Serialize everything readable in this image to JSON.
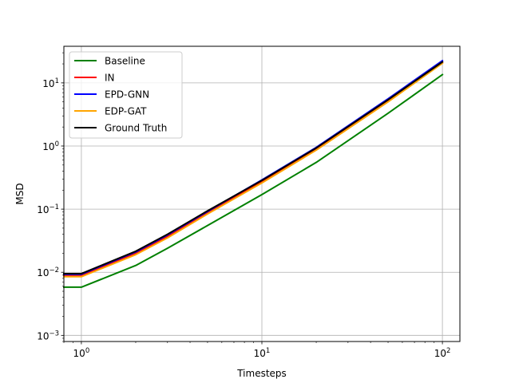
{
  "chart_data": {
    "type": "line",
    "title": "",
    "xlabel": "Timesteps",
    "ylabel": "MSD",
    "xscale": "log",
    "yscale": "log",
    "xlim": [
      0.8,
      125
    ],
    "ylim": [
      0.0008,
      38
    ],
    "grid": true,
    "legend_position": "upper-left",
    "x_ticks": [
      {
        "value": 1,
        "base": "10",
        "exp": "0"
      },
      {
        "value": 10,
        "base": "10",
        "exp": "1"
      },
      {
        "value": 100,
        "base": "10",
        "exp": "2"
      }
    ],
    "y_ticks": [
      {
        "value": 0.001,
        "base": "10",
        "exp": "−3"
      },
      {
        "value": 0.01,
        "base": "10",
        "exp": "−2"
      },
      {
        "value": 0.1,
        "base": "10",
        "exp": "−1"
      },
      {
        "value": 1,
        "base": "10",
        "exp": "0"
      },
      {
        "value": 10,
        "base": "10",
        "exp": "1"
      }
    ],
    "series": [
      {
        "name": "Baseline",
        "color": "#008000",
        "x": [
          0.8,
          1,
          2,
          3,
          5,
          10,
          20,
          50,
          100
        ],
        "y": [
          0.0058,
          0.0058,
          0.0128,
          0.024,
          0.055,
          0.17,
          0.55,
          3.3,
          13.5
        ]
      },
      {
        "name": "IN",
        "color": "#ff0000",
        "x": [
          0.8,
          1,
          2,
          3,
          5,
          10,
          20,
          50,
          100
        ],
        "y": [
          0.0088,
          0.0088,
          0.02,
          0.037,
          0.087,
          0.27,
          0.88,
          5.2,
          21.0
        ]
      },
      {
        "name": "EPD-GNN",
        "color": "#0000ff",
        "x": [
          0.8,
          1,
          2,
          3,
          5,
          10,
          20,
          50,
          100
        ],
        "y": [
          0.0093,
          0.0093,
          0.021,
          0.039,
          0.092,
          0.29,
          0.95,
          5.6,
          22.5
        ]
      },
      {
        "name": "EDP-GAT",
        "color": "#ffa500",
        "x": [
          0.8,
          1,
          2,
          3,
          5,
          10,
          20,
          50,
          100
        ],
        "y": [
          0.0085,
          0.0085,
          0.019,
          0.035,
          0.084,
          0.26,
          0.86,
          5.0,
          20.5
        ]
      },
      {
        "name": "Ground Truth",
        "color": "#000000",
        "x": [
          0.8,
          1,
          2,
          3,
          5,
          10,
          20,
          50,
          100
        ],
        "y": [
          0.0095,
          0.0095,
          0.0215,
          0.04,
          0.094,
          0.285,
          0.93,
          5.4,
          21.5
        ]
      }
    ]
  }
}
